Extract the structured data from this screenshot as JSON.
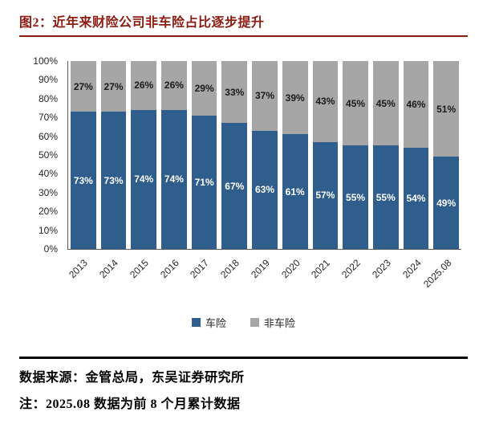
{
  "header": {
    "title": "图2：近年来财险公司非车险占比逐步提升",
    "accent_color": "#8E1A10"
  },
  "chart_data": {
    "type": "bar",
    "stacked": true,
    "percent": true,
    "title": "近年来财险公司非车险占比逐步提升",
    "categories": [
      "2013",
      "2014",
      "2015",
      "2016",
      "2017",
      "2018",
      "2019",
      "2020",
      "2021",
      "2022",
      "2023",
      "2024",
      "2025.08"
    ],
    "series": [
      {
        "name": "车险",
        "color": "#2F5D8C",
        "label_color": "#ffffff",
        "values": [
          73,
          73,
          74,
          74,
          71,
          67,
          63,
          61,
          57,
          55,
          55,
          54,
          49
        ]
      },
      {
        "name": "非车险",
        "color": "#A6A6A6",
        "label_color": "#1a1a1a",
        "values": [
          27,
          27,
          26,
          26,
          29,
          33,
          37,
          39,
          43,
          45,
          45,
          46,
          51
        ]
      }
    ],
    "ylim": [
      0,
      100
    ],
    "y_tick_step": 10,
    "y_tick_labels": [
      "0%",
      "10%",
      "20%",
      "30%",
      "40%",
      "50%",
      "60%",
      "70%",
      "80%",
      "90%",
      "100%"
    ],
    "grid": false,
    "legend_position": "bottom"
  },
  "footer": {
    "source": "数据来源：金管总局，东吴证券研究所",
    "note": "注：2025.08 数据为前 8 个月累计数据"
  }
}
